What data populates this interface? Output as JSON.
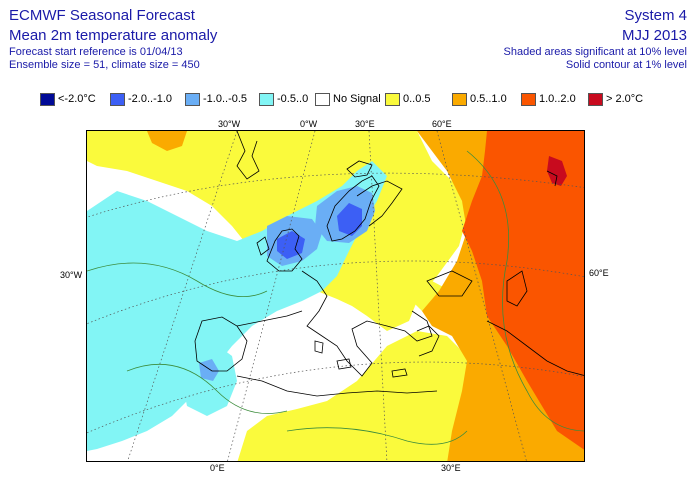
{
  "header": {
    "title_left": "ECMWF Seasonal Forecast",
    "subtitle_left": "Mean 2m temperature anomaly",
    "forecast_ref": "Forecast start reference is 01/04/13",
    "ensemble": "Ensemble size = 51, climate size = 450",
    "title_right": "System 4",
    "period": "MJJ 2013",
    "shaded_note": "Shaded areas significant at 10% level",
    "contour_note": "Solid contour at 1% level"
  },
  "legend": [
    {
      "label": "<-2.0°C",
      "color": "#000a96"
    },
    {
      "label": "-2.0..-1.0",
      "color": "#3c5ff5"
    },
    {
      "label": "-1.0..-0.5",
      "color": "#6aaef5"
    },
    {
      "label": "-0.5..0",
      "color": "#82f5f5"
    },
    {
      "label": "No Signal",
      "color": "#ffffff"
    },
    {
      "label": "0..0.5",
      "color": "#fafa3c"
    },
    {
      "label": "0.5..1.0",
      "color": "#faaa00"
    },
    {
      "label": "1.0..2.0",
      "color": "#fa5500"
    },
    {
      "label": "> 2.0°C",
      "color": "#c80a1e"
    }
  ],
  "axis_labels": {
    "top": [
      "30°W",
      "0°W",
      "30°E",
      "60°E"
    ],
    "left": [
      "30°W"
    ],
    "right": [
      "60°E"
    ],
    "bottom": [
      "0°E",
      "30°E"
    ]
  },
  "map": {
    "region": "Europe / North Atlantic",
    "colors": {
      "cyan": "#82f5f5",
      "light_blue": "#6aaef5",
      "blue": "#3c5ff5",
      "yellow": "#fafa3c",
      "orange": "#faaa00",
      "dark_orange": "#fa5500",
      "red": "#c80a1e",
      "coast": "#000000",
      "grid": "#555555",
      "contour": "#3c8c3c"
    }
  }
}
